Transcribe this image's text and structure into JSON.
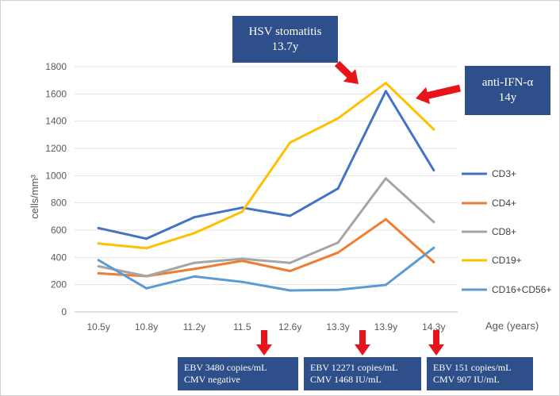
{
  "chart_data": {
    "type": "line",
    "categories": [
      "10.5y",
      "10.8y",
      "11.2y",
      "11.5",
      "12.6y",
      "13.3y",
      "13.9y",
      "14.3y"
    ],
    "series": [
      {
        "name": "CD3+",
        "color": "#4472c4",
        "values": [
          615,
          537,
          695,
          765,
          705,
          905,
          1620,
          1040
        ]
      },
      {
        "name": "CD4+",
        "color": "#ed7d31",
        "values": [
          283,
          262,
          315,
          375,
          300,
          435,
          680,
          365
        ]
      },
      {
        "name": "CD8+",
        "color": "#a5a5a5",
        "values": [
          335,
          262,
          360,
          390,
          360,
          508,
          980,
          660
        ]
      },
      {
        "name": "CD19+",
        "color": "#ffc000",
        "values": [
          502,
          468,
          578,
          735,
          1243,
          1420,
          1680,
          1340
        ]
      },
      {
        "name": "CD16+CD56+",
        "color": "#5b9bd5",
        "values": [
          380,
          173,
          260,
          220,
          157,
          162,
          198,
          470
        ]
      }
    ],
    "ylabel": "cells/mm³",
    "xlabel": "Age (years)",
    "ylim": [
      0,
      1800
    ],
    "yticks": [
      0,
      200,
      400,
      600,
      800,
      1000,
      1200,
      1400,
      1600,
      1800
    ],
    "grid": true,
    "legend": "right"
  },
  "annotations": {
    "hsv": {
      "line1": "HSV stomatitis",
      "line2": "13.7y"
    },
    "ifn": {
      "line1": "anti-IFN-α",
      "line2": "14y"
    },
    "virus_boxes": [
      {
        "line1": "EBV 3480 copies/mL",
        "line2": "CMV negative"
      },
      {
        "line1": "EBV 12271 copies/mL",
        "line2": "CMV 1468 IU/mL"
      },
      {
        "line1": "EBV 151 copies/mL",
        "line2": "CMV 907 IU/mL"
      }
    ]
  },
  "colors": {
    "callout_bg": "#2e4f8a",
    "arrow": "#e8141b"
  }
}
